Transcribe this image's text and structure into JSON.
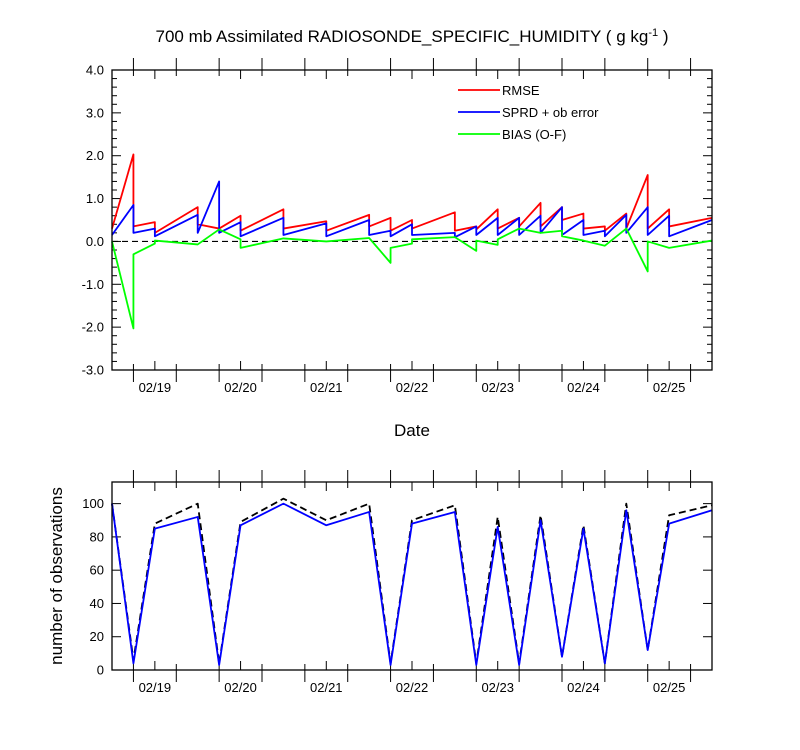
{
  "chart_data": [
    {
      "type": "line",
      "title_main": "700 mb Assimilated RADIOSONDE_SPECIFIC_HUMIDITY ( g kg",
      "title_sup": "-1",
      "title_end": " )",
      "xlabel": "Date",
      "ylabel": "",
      "ylim": [
        -3.0,
        4.0
      ],
      "xlim": [
        0,
        7.0
      ],
      "yticks": [
        -3.0,
        -2.0,
        -1.0,
        0.0,
        1.0,
        2.0,
        3.0,
        4.0
      ],
      "ytick_labels": [
        "-3.0",
        "-2.0",
        "-1.0",
        "0.0",
        "1.0",
        "2.0",
        "3.0",
        "4.0"
      ],
      "x_major": [
        0.5,
        1.5,
        2.5,
        3.5,
        4.5,
        5.5,
        6.5
      ],
      "x_major_labels": [
        "02/19",
        "02/20",
        "02/21",
        "02/22",
        "02/23",
        "02/24",
        "02/25"
      ],
      "x_minor": [
        0.25,
        0.75,
        1.25,
        1.75,
        2.25,
        2.75,
        3.25,
        3.75,
        4.25,
        4.75,
        5.25,
        5.75,
        6.25,
        6.75
      ],
      "legend_position": "top-right",
      "zero_line": "dashed",
      "series": [
        {
          "name": "RMSE",
          "color": "#ff0000",
          "x": [
            0.0,
            0.25,
            0.25,
            0.5,
            0.5,
            1.0,
            1.0,
            1.25,
            1.25,
            1.5,
            1.5,
            2.0,
            2.0,
            2.5,
            2.5,
            3.0,
            3.0,
            3.25,
            3.25,
            3.5,
            3.5,
            4.0,
            4.0,
            4.25,
            4.25,
            4.5,
            4.5,
            4.75,
            4.75,
            5.0,
            5.0,
            5.25,
            5.25,
            5.5,
            5.5,
            5.75,
            5.75,
            6.0,
            6.0,
            6.25,
            6.25,
            6.5,
            6.5,
            7.0
          ],
          "y": [
            0.3,
            2.03,
            0.35,
            0.45,
            0.2,
            0.8,
            0.4,
            0.3,
            0.3,
            0.6,
            0.25,
            0.75,
            0.3,
            0.47,
            0.25,
            0.62,
            0.35,
            0.55,
            0.25,
            0.5,
            0.3,
            0.68,
            0.25,
            0.35,
            0.28,
            0.75,
            0.3,
            0.55,
            0.35,
            0.9,
            0.35,
            0.8,
            0.5,
            0.65,
            0.3,
            0.35,
            0.25,
            0.65,
            0.3,
            1.55,
            0.3,
            0.75,
            0.35,
            0.55
          ]
        },
        {
          "name": "SPRD + ob error",
          "color": "#0000ff",
          "x": [
            0.0,
            0.25,
            0.25,
            0.5,
            0.5,
            1.0,
            1.0,
            1.25,
            1.25,
            1.5,
            1.5,
            2.0,
            2.0,
            2.5,
            2.5,
            3.0,
            3.0,
            3.25,
            3.25,
            3.5,
            3.5,
            4.0,
            4.0,
            4.25,
            4.25,
            4.5,
            4.5,
            4.75,
            4.75,
            5.0,
            5.0,
            5.25,
            5.25,
            5.5,
            5.5,
            5.75,
            5.75,
            6.0,
            6.0,
            6.25,
            6.25,
            6.5,
            6.5,
            7.0
          ],
          "y": [
            0.15,
            0.85,
            0.2,
            0.3,
            0.12,
            0.62,
            0.2,
            1.4,
            0.2,
            0.45,
            0.12,
            0.55,
            0.15,
            0.42,
            0.12,
            0.5,
            0.15,
            0.25,
            0.12,
            0.4,
            0.15,
            0.2,
            0.1,
            0.35,
            0.15,
            0.55,
            0.15,
            0.55,
            0.15,
            0.6,
            0.2,
            0.8,
            0.15,
            0.5,
            0.15,
            0.25,
            0.12,
            0.62,
            0.2,
            0.8,
            0.15,
            0.6,
            0.12,
            0.5
          ]
        },
        {
          "name": "BIAS (O-F)",
          "color": "#00ff00",
          "x": [
            0.0,
            0.25,
            0.25,
            0.5,
            0.5,
            1.0,
            1.25,
            1.5,
            1.5,
            2.0,
            2.5,
            3.0,
            3.25,
            3.25,
            3.5,
            3.5,
            4.0,
            4.25,
            4.25,
            4.5,
            4.5,
            4.75,
            5.0,
            5.25,
            5.25,
            5.5,
            5.75,
            6.0,
            6.25,
            6.25,
            6.5,
            7.0
          ],
          "y": [
            0.0,
            -2.03,
            -0.3,
            -0.05,
            0.02,
            -0.07,
            0.28,
            0.05,
            -0.15,
            0.07,
            0.0,
            0.08,
            -0.5,
            -0.15,
            -0.05,
            0.05,
            0.1,
            -0.22,
            0.02,
            -0.08,
            0.05,
            0.3,
            0.2,
            0.25,
            0.12,
            0.02,
            -0.1,
            0.3,
            -0.7,
            0.0,
            -0.15,
            0.02
          ]
        }
      ]
    },
    {
      "type": "line",
      "title": "",
      "xlabel": "",
      "ylabel": "number of observations",
      "ylim": [
        0,
        113
      ],
      "xlim": [
        0,
        7.0
      ],
      "yticks": [
        0,
        20,
        40,
        60,
        80,
        100
      ],
      "ytick_labels": [
        "0",
        "20",
        "40",
        "60",
        "80",
        "100"
      ],
      "x_major": [
        0.5,
        1.5,
        2.5,
        3.5,
        4.5,
        5.5,
        6.5
      ],
      "x_major_labels": [
        "02/19",
        "02/20",
        "02/21",
        "02/22",
        "02/23",
        "02/24",
        "02/25"
      ],
      "x_minor": [
        0.25,
        0.75,
        1.25,
        1.75,
        2.25,
        2.75,
        3.25,
        3.75,
        4.25,
        4.75,
        5.25,
        5.75,
        6.25,
        6.75
      ],
      "series": [
        {
          "color": "#000000",
          "style": "dashed",
          "x": [
            0.0,
            0.25,
            0.5,
            1.0,
            1.25,
            1.5,
            2.0,
            2.5,
            3.0,
            3.25,
            3.5,
            4.0,
            4.25,
            4.5,
            4.75,
            5.0,
            5.25,
            5.5,
            5.75,
            6.0,
            6.25,
            6.5,
            7.0
          ],
          "y": [
            100,
            6,
            88,
            100,
            4,
            89,
            103,
            90,
            100,
            4,
            90,
            99,
            4,
            92,
            4,
            93,
            8,
            87,
            4,
            100,
            12,
            93,
            99
          ]
        },
        {
          "color": "#0000ff",
          "style": "solid",
          "x": [
            0.0,
            0.25,
            0.5,
            1.0,
            1.25,
            1.5,
            2.0,
            2.5,
            3.0,
            3.25,
            3.5,
            4.0,
            4.25,
            4.5,
            4.75,
            5.0,
            5.25,
            5.5,
            5.75,
            6.0,
            6.25,
            6.5,
            7.0
          ],
          "y": [
            100,
            4,
            85,
            92,
            3,
            87,
            100,
            87,
            95,
            3,
            88,
            95,
            3,
            86,
            3,
            90,
            8,
            85,
            4,
            96,
            12,
            88,
            96
          ]
        }
      ]
    }
  ]
}
